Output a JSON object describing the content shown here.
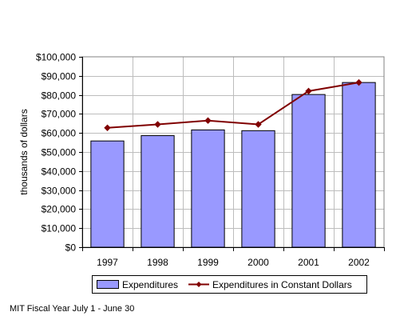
{
  "chart_data": {
    "type": "bar",
    "title": "",
    "xlabel": "",
    "ylabel": "thousands of dollars",
    "categories": [
      "1997",
      "1998",
      "1999",
      "2000",
      "2001",
      "2002"
    ],
    "ylim": [
      0,
      100000
    ],
    "ytick_step": 10000,
    "yticks": [
      "$0",
      "$10,000",
      "$20,000",
      "$30,000",
      "$40,000",
      "$50,000",
      "$60,000",
      "$70,000",
      "$80,000",
      "$90,000",
      "$100,000"
    ],
    "grid": true,
    "legend_position": "bottom",
    "series": [
      {
        "name": "Expenditures",
        "kind": "bar",
        "color": "#9999ff",
        "values": [
          55800,
          58600,
          61600,
          61200,
          80200,
          86500
        ]
      },
      {
        "name": "Expenditures in Constant Dollars",
        "kind": "line",
        "color": "#800000",
        "values": [
          62700,
          64500,
          66500,
          64500,
          82000,
          86500
        ]
      }
    ]
  },
  "footnote": "MIT Fiscal Year July 1 - June 30"
}
